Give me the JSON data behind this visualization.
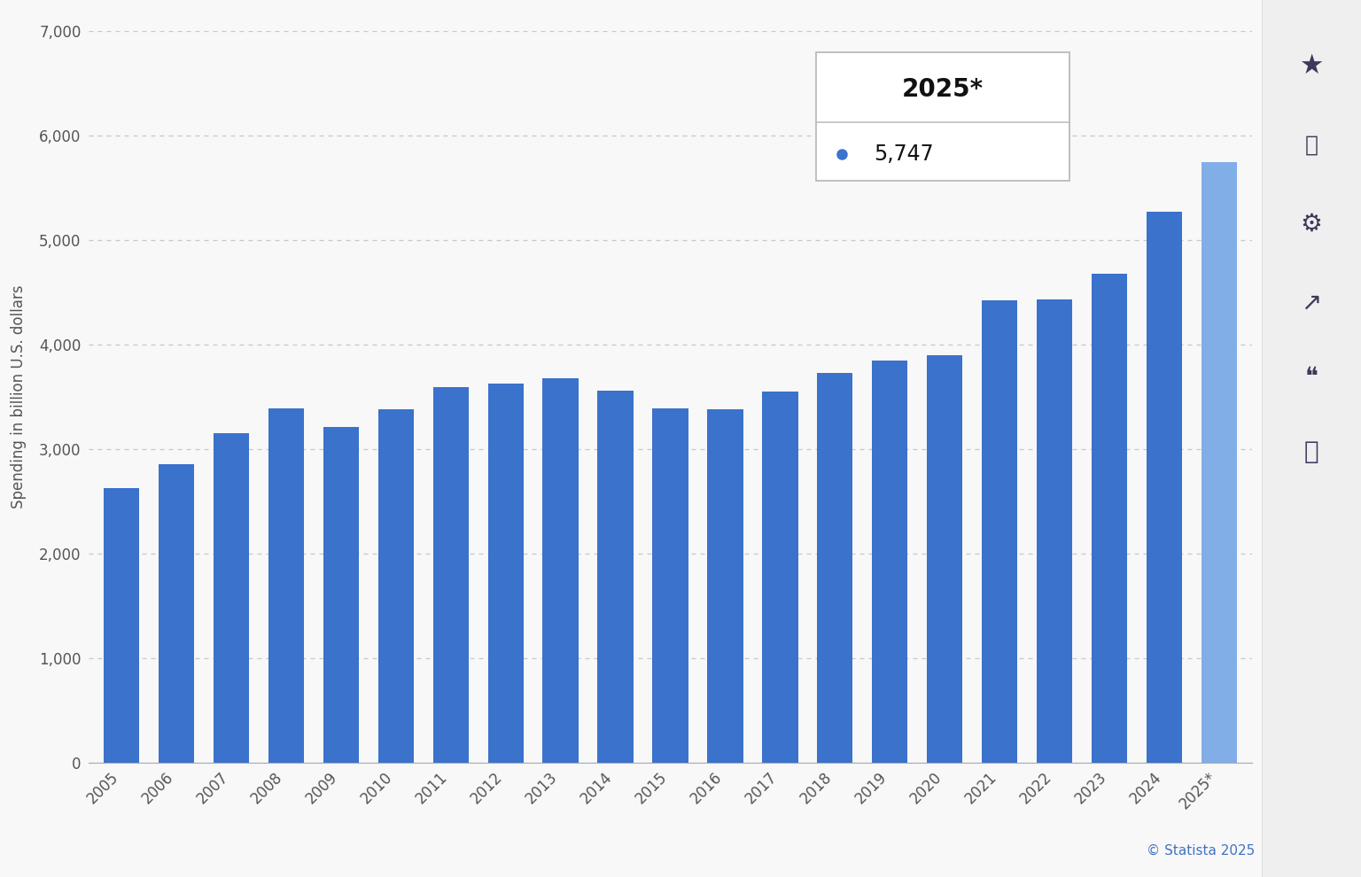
{
  "years": [
    "2005",
    "2006",
    "2007",
    "2008",
    "2009",
    "2010",
    "2011",
    "2012",
    "2013",
    "2014",
    "2015",
    "2016",
    "2017",
    "2018",
    "2019",
    "2020",
    "2021",
    "2022",
    "2023",
    "2024",
    "2025*"
  ],
  "values": [
    2630,
    2860,
    3150,
    3390,
    3210,
    3380,
    3590,
    3630,
    3680,
    3560,
    3390,
    3380,
    3550,
    3730,
    3850,
    3900,
    4420,
    4430,
    4680,
    5270,
    5747
  ],
  "bar_color_main": "#3a72cc",
  "bar_color_last": "#82aee8",
  "background_color": "#f8f8f8",
  "ylabel": "Spending in billion U.S. dollars",
  "ylim": [
    0,
    7000
  ],
  "yticks": [
    0,
    1000,
    2000,
    3000,
    4000,
    5000,
    6000,
    7000
  ],
  "grid_color": "#c8c8c8",
  "tooltip_year": "2025*",
  "tooltip_value": "5,747",
  "statista_text": "© Statista 2025",
  "sidebar_color": "#efefef",
  "sidebar_border_color": "#dddddd"
}
